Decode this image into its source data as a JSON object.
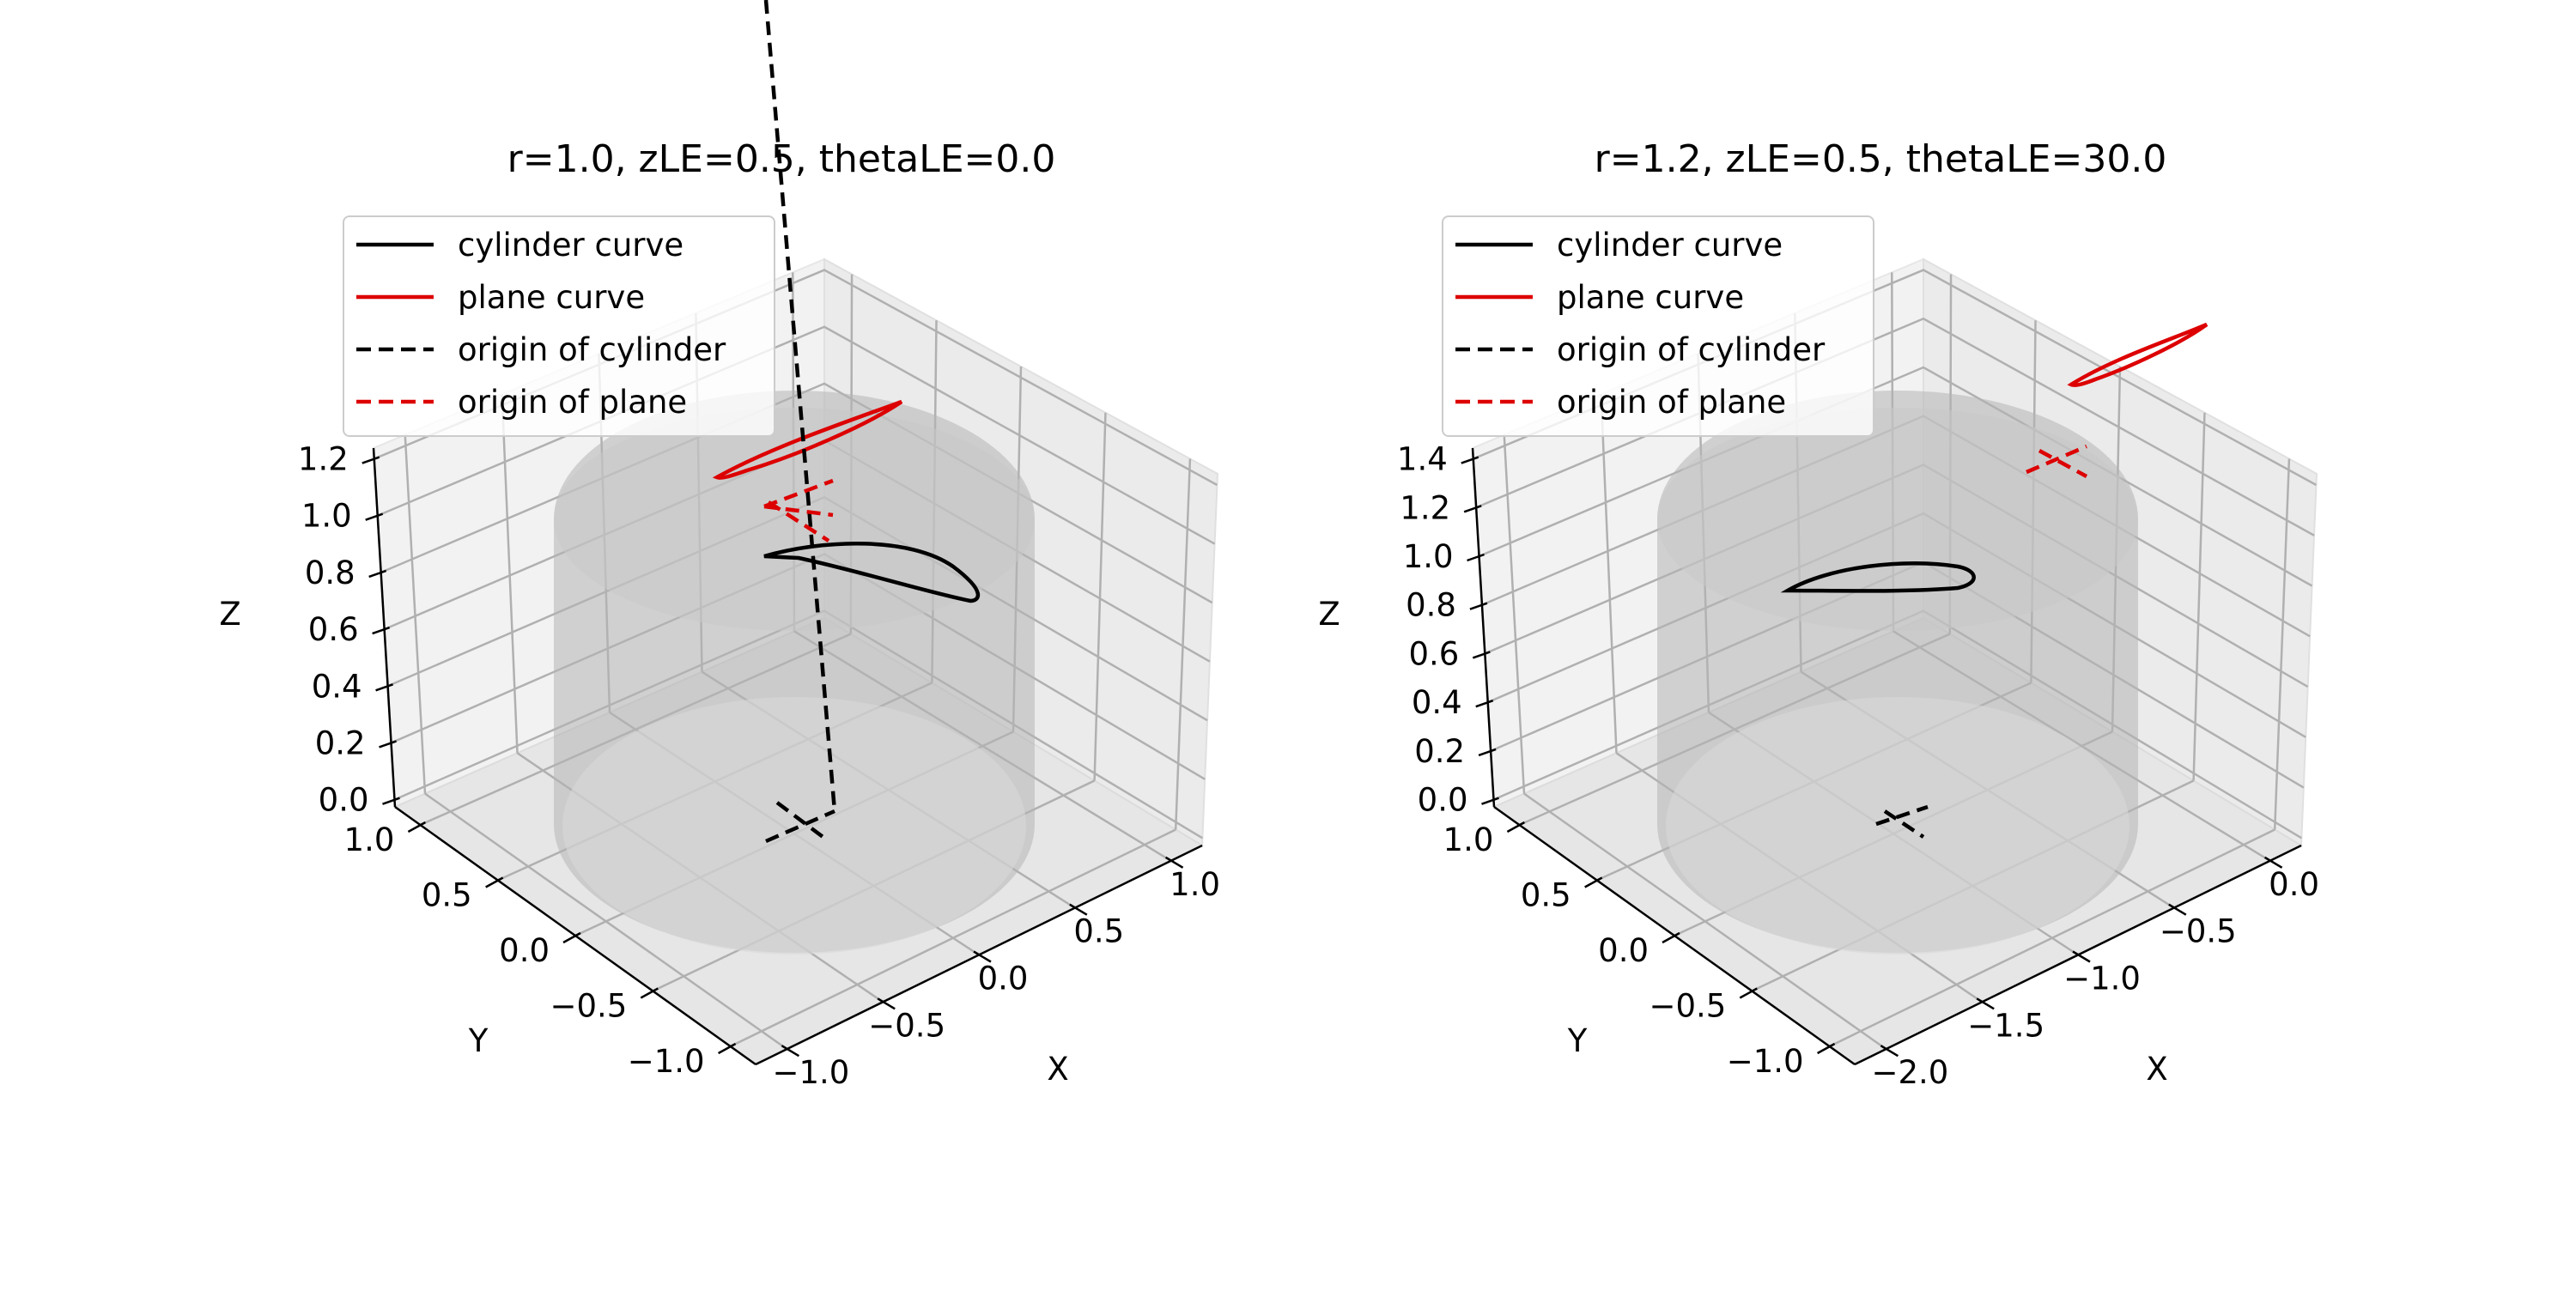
{
  "chart_data": [
    {
      "type": "line",
      "projection": "3d",
      "title": "r=1.0, zLE=0.5, thetaLE=0.0",
      "xlabel": "X",
      "ylabel": "Y",
      "zlabel": "Z",
      "xlim": [
        -1.0,
        1.0
      ],
      "ylim": [
        -1.0,
        1.0
      ],
      "zlim": [
        0.0,
        1.2
      ],
      "xticks": [
        "−1.0",
        "−0.5",
        "0.0",
        "0.5",
        "1.0"
      ],
      "yticks": [
        "−1.0",
        "−0.5",
        "0.0",
        "0.5",
        "1.0"
      ],
      "zticks": [
        "0.0",
        "0.2",
        "0.4",
        "0.6",
        "0.8",
        "1.0",
        "1.2"
      ],
      "grid": true,
      "legend_position": "upper-left",
      "legend": [
        {
          "label": "cylinder curve",
          "color": "#000000",
          "style": "solid"
        },
        {
          "label": "plane curve",
          "color": "#dd0000",
          "style": "solid"
        },
        {
          "label": "origin of cylinder",
          "color": "#000000",
          "style": "dashed"
        },
        {
          "label": "origin of plane",
          "color": "#dd0000",
          "style": "dashed"
        }
      ],
      "cylinder": {
        "radius": 1.0,
        "z_range": [
          0.0,
          1.2
        ],
        "color": "#c0c0c0"
      }
    },
    {
      "type": "line",
      "projection": "3d",
      "title": "r=1.2, zLE=0.5, thetaLE=30.0",
      "xlabel": "X",
      "ylabel": "Y",
      "zlabel": "Z",
      "xlim": [
        -2.0,
        0.0
      ],
      "ylim": [
        -1.0,
        1.0
      ],
      "zlim": [
        0.0,
        1.4
      ],
      "xticks": [
        "−2.0",
        "−1.5",
        "−1.0",
        "−0.5",
        "0.0"
      ],
      "yticks": [
        "−1.0",
        "−0.5",
        "0.0",
        "0.5",
        "1.0"
      ],
      "zticks": [
        "0.0",
        "0.2",
        "0.4",
        "0.6",
        "0.8",
        "1.0",
        "1.2",
        "1.4"
      ],
      "grid": true,
      "legend_position": "upper-left",
      "legend": [
        {
          "label": "cylinder curve",
          "color": "#000000",
          "style": "solid"
        },
        {
          "label": "plane curve",
          "color": "#dd0000",
          "style": "solid"
        },
        {
          "label": "origin of cylinder",
          "color": "#000000",
          "style": "dashed"
        },
        {
          "label": "origin of plane",
          "color": "#dd0000",
          "style": "dashed"
        }
      ],
      "cylinder": {
        "radius": 1.2,
        "z_range": [
          0.0,
          1.4
        ],
        "color": "#c0c0c0"
      }
    }
  ]
}
